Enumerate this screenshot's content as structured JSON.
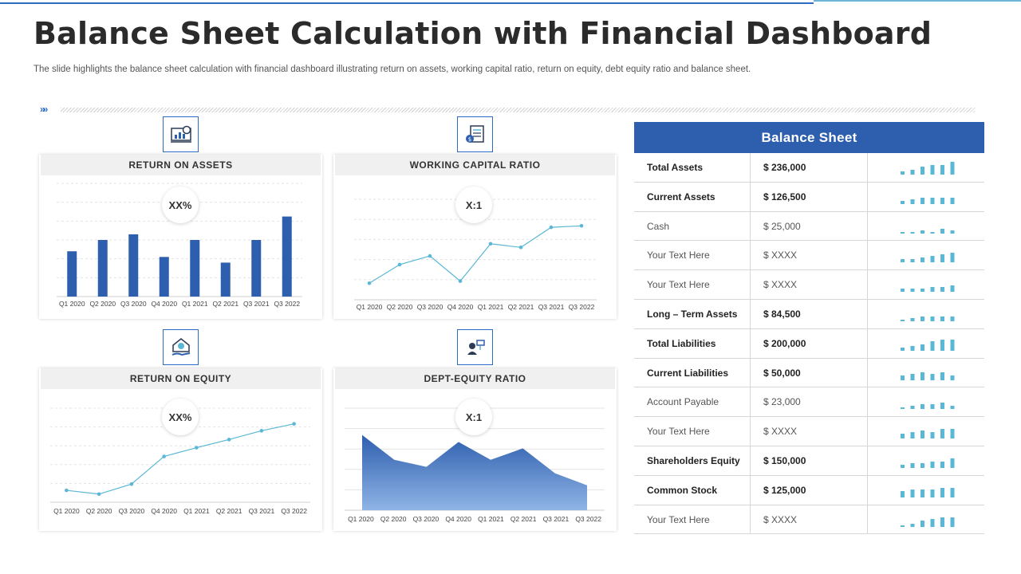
{
  "page": {
    "title": "Balance Sheet Calculation with Financial Dashboard",
    "subtitle": "The slide highlights the balance sheet calculation with financial dashboard illustrating return on assets, working capital ratio, return on equity,  debt equity ratio and balance sheet.",
    "divider_arrows": "»»"
  },
  "colors": {
    "accent": "#2e5fae",
    "bar": "#2e5fae",
    "line": "#5ab7d6",
    "spark": "#5ab7d6",
    "area_top": "#2e5fae",
    "area_bottom": "#8fb4e6"
  },
  "icons": [
    "analytics-icon",
    "document-dollar-icon",
    "house-hand-icon",
    "investor-money-icon"
  ],
  "chart_data": [
    {
      "type": "bar",
      "title": "RETURN ON ASSETS",
      "badge": "XX%",
      "categories": [
        "Q1 2020",
        "Q2 2020",
        "Q3 2020",
        "Q4 2020",
        "Q1 2021",
        "Q2 2021",
        "Q3 2021",
        "Q3 2022"
      ],
      "values": [
        2.8,
        3.5,
        3.85,
        2.45,
        3.5,
        2.1,
        3.5,
        4.95
      ],
      "ylim": [
        0,
        7
      ],
      "grid": true
    },
    {
      "type": "line",
      "title": "WORKING CAPITAL RATIO",
      "badge": "X:1",
      "categories": [
        "Q1 2020",
        "Q2 2020",
        "Q3 2020",
        "Q4 2020",
        "Q1 2021",
        "Q2 2021",
        "Q3 2021",
        "Q3 2022"
      ],
      "values": [
        1.15,
        2.45,
        3.05,
        1.3,
        3.9,
        3.65,
        5.05,
        5.15
      ],
      "ylim": [
        0,
        7
      ],
      "grid": true
    },
    {
      "type": "line",
      "title": "RETURN ON EQUITY",
      "badge": "XX%",
      "categories": [
        "Q1 2020",
        "Q2 2020",
        "Q3 2020",
        "Q4 2020",
        "Q1 2021",
        "Q2 2021",
        "Q3 2021",
        "Q3 2022"
      ],
      "values": [
        0.45,
        0.15,
        0.95,
        3.15,
        3.85,
        4.5,
        5.2,
        5.75
      ],
      "ylim": [
        -0.5,
        7
      ],
      "grid": true
    },
    {
      "type": "area",
      "title": "DEPT-EQUITY RATIO",
      "badge": "X:1",
      "categories": [
        "Q1 2020",
        "Q2 2020",
        "Q3 2020",
        "Q4 2020",
        "Q1 2021",
        "Q2 2021",
        "Q3 2021",
        "Q3 2022"
      ],
      "values": [
        5.9,
        3.95,
        3.4,
        5.35,
        3.95,
        4.85,
        2.9,
        1.95
      ],
      "ylim": [
        0,
        8
      ],
      "grid": true
    }
  ],
  "balance_sheet": {
    "title": "Balance Sheet",
    "rows": [
      {
        "label": "Total Assets",
        "value": "$ 236,000",
        "bold": true,
        "spark": [
          2,
          3,
          5,
          6,
          6,
          8
        ]
      },
      {
        "label": "Current Assets",
        "value": "$ 126,500",
        "bold": true,
        "spark": [
          2,
          3,
          4,
          4,
          4,
          4
        ]
      },
      {
        "label": "Cash",
        "value": "$ 25,000",
        "bold": false,
        "spark": [
          1,
          1,
          2,
          1,
          3,
          2
        ]
      },
      {
        "label": "Your Text Here",
        "value": "$ XXXX",
        "bold": false,
        "spark": [
          2,
          2,
          3,
          4,
          5,
          6
        ]
      },
      {
        "label": "Your Text Here",
        "value": "$ XXXX",
        "bold": false,
        "spark": [
          2,
          2,
          2,
          3,
          3,
          4
        ]
      },
      {
        "label": "Long – Term Assets",
        "value": "$ 84,500",
        "bold": true,
        "spark": [
          1,
          2,
          3,
          3,
          3,
          3
        ]
      },
      {
        "label": "Total Liabilities",
        "value": "$ 200,000",
        "bold": true,
        "spark": [
          2,
          3,
          4,
          6,
          7,
          7
        ]
      },
      {
        "label": "Current Liabilities",
        "value": "$  50,000",
        "bold": true,
        "spark": [
          3,
          4,
          5,
          4,
          5,
          3
        ]
      },
      {
        "label": "Account Payable",
        "value": "$ 23,000",
        "bold": false,
        "spark": [
          1,
          2,
          3,
          3,
          4,
          2
        ]
      },
      {
        "label": "Your Text Here",
        "value": "$ XXXX",
        "bold": false,
        "spark": [
          3,
          4,
          5,
          4,
          6,
          6
        ]
      },
      {
        "label": "Shareholders Equity",
        "value": "$ 150,000",
        "bold": true,
        "spark": [
          2,
          3,
          3,
          4,
          4,
          6
        ]
      },
      {
        "label": "Common Stock",
        "value": "$ 125,000",
        "bold": true,
        "spark": [
          4,
          5,
          5,
          5,
          6,
          6
        ]
      },
      {
        "label": "Your Text Here",
        "value": "$ XXXX",
        "bold": false,
        "spark": [
          1,
          2,
          4,
          5,
          6,
          6
        ]
      }
    ]
  }
}
